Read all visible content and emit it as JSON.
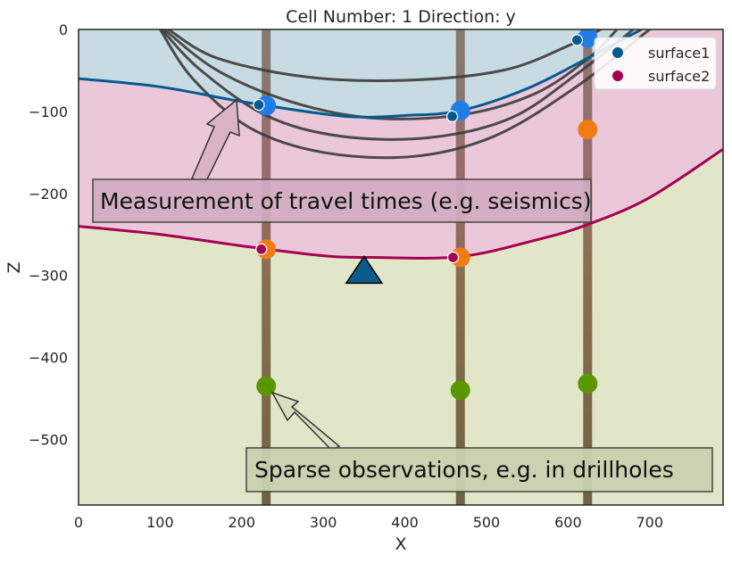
{
  "chart_data": {
    "type": "scatter",
    "title": "Cell Number: 1 Direction: y",
    "xlabel": "X",
    "ylabel": "Z",
    "xlim": [
      0,
      790
    ],
    "ylim": [
      -580,
      0
    ],
    "xticks": [
      0,
      100,
      200,
      300,
      400,
      500,
      600,
      700
    ],
    "yticks": [
      0,
      -100,
      -200,
      -300,
      -400,
      -500
    ],
    "legend": {
      "position": "top-right",
      "entries": [
        {
          "name": "surface1",
          "color": "#045a8d"
        },
        {
          "name": "surface2",
          "color": "#a50052"
        }
      ]
    },
    "colors": {
      "layer_top": "#c8dbe3",
      "layer_middle": "#ebc8d9",
      "layer_bottom": "#e2e6c9",
      "surface1": "#045a8d",
      "surface2": "#a50052",
      "contour": "#3b3b3b",
      "blue_obs": "#1f7ee6",
      "orange_obs": "#f07d14",
      "green_obs": "#5a9600"
    },
    "series": [
      {
        "name": "surface1",
        "points": [
          [
            221,
            -92
          ],
          [
            458,
            -106
          ],
          [
            611,
            -13
          ]
        ]
      },
      {
        "name": "surface2",
        "points": [
          [
            224,
            -268
          ],
          [
            459,
            -278
          ]
        ]
      }
    ],
    "drillhole_x": [
      230,
      468,
      624
    ],
    "drillhole_observations": {
      "blue": [
        [
          230,
          -93
        ],
        [
          468,
          -99
        ],
        [
          624,
          -10
        ]
      ],
      "orange": [
        [
          230,
          -268
        ],
        [
          468,
          -278
        ],
        [
          624,
          -122
        ]
      ],
      "green": [
        [
          230,
          -435
        ],
        [
          468,
          -440
        ],
        [
          624,
          -432
        ]
      ]
    },
    "surface1_line": [
      [
        0,
        -60
      ],
      [
        100,
        -70
      ],
      [
        200,
        -88
      ],
      [
        300,
        -103
      ],
      [
        350,
        -107
      ],
      [
        400,
        -105
      ],
      [
        468,
        -99
      ],
      [
        550,
        -72
      ],
      [
        624,
        -35
      ],
      [
        690,
        0
      ]
    ],
    "surface2_line": [
      [
        0,
        -240
      ],
      [
        100,
        -250
      ],
      [
        200,
        -264
      ],
      [
        300,
        -276
      ],
      [
        360,
        -278
      ],
      [
        468,
        -277
      ],
      [
        560,
        -257
      ],
      [
        624,
        -238
      ],
      [
        700,
        -205
      ],
      [
        790,
        -146
      ]
    ],
    "contours": [
      [
        [
          110,
          0
        ],
        [
          170,
          -35
        ],
        [
          280,
          -58
        ],
        [
          400,
          -62
        ],
        [
          520,
          -50
        ],
        [
          600,
          -20
        ],
        [
          640,
          0
        ]
      ],
      [
        [
          105,
          0
        ],
        [
          170,
          -50
        ],
        [
          260,
          -88
        ],
        [
          360,
          -108
        ],
        [
          470,
          -104
        ],
        [
          560,
          -78
        ],
        [
          625,
          -35
        ],
        [
          660,
          0
        ]
      ],
      [
        [
          102,
          0
        ],
        [
          150,
          -50
        ],
        [
          230,
          -105
        ],
        [
          320,
          -130
        ],
        [
          430,
          -132
        ],
        [
          530,
          -108
        ],
        [
          610,
          -55
        ],
        [
          680,
          0
        ]
      ],
      [
        [
          100,
          0
        ],
        [
          140,
          -60
        ],
        [
          210,
          -120
        ],
        [
          300,
          -150
        ],
        [
          410,
          -155
        ],
        [
          510,
          -130
        ],
        [
          610,
          -70
        ],
        [
          700,
          0
        ]
      ]
    ],
    "section_marker": {
      "x": 350,
      "y": -292
    },
    "annotations": [
      {
        "text": "Measurement of travel times (e.g. seismics)",
        "arrow_target": [
          195,
          -85
        ]
      },
      {
        "text": "Sparse observations, e.g. in drillholes",
        "arrow_target": [
          240,
          -445
        ]
      }
    ]
  }
}
